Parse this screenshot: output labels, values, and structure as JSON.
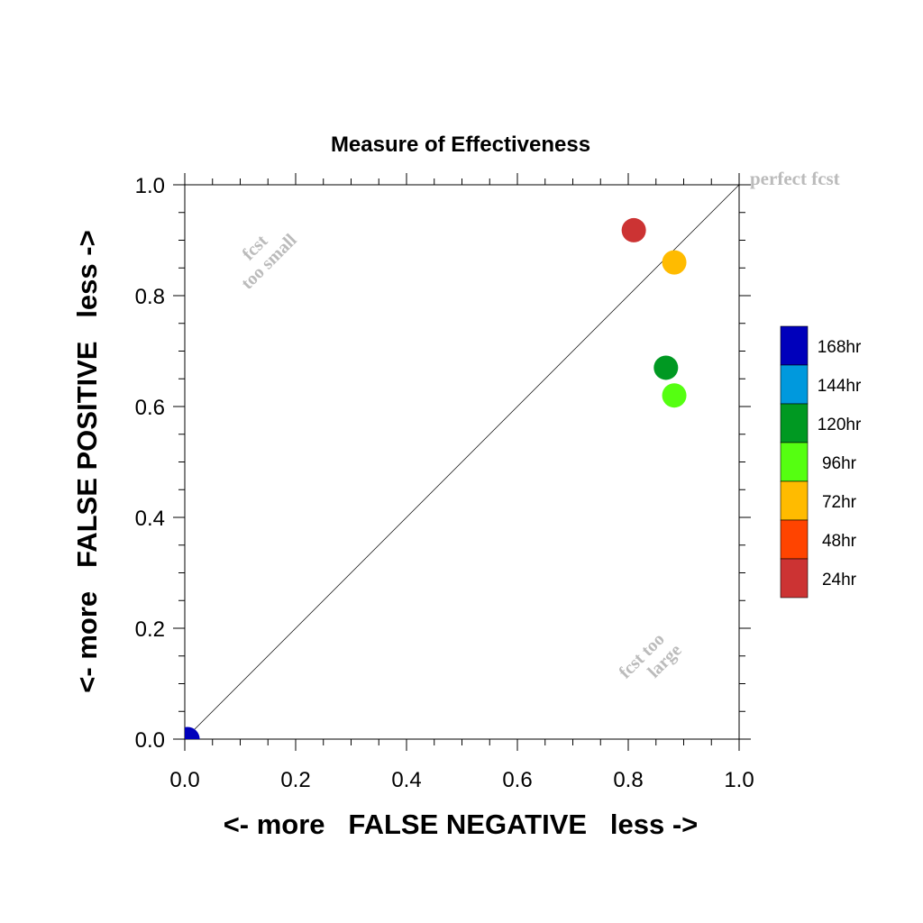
{
  "chart_data": {
    "type": "scatter",
    "title": "Measure of Effectiveness",
    "xlabel": "<- more   FALSE NEGATIVE   less ->",
    "ylabel": "<- more   FALSE POSITIVE   less ->",
    "xlim": [
      0.0,
      1.0
    ],
    "ylim": [
      0.0,
      1.0
    ],
    "x_ticks": [
      "0.0",
      "0.2",
      "0.4",
      "0.6",
      "0.8",
      "1.0"
    ],
    "y_ticks": [
      "0.0",
      "0.2",
      "0.4",
      "0.6",
      "0.8",
      "1.0"
    ],
    "grid": false,
    "diagonal_label": "perfect fcst",
    "annotations": {
      "upper_left": [
        "fcst",
        "too small"
      ],
      "lower_right": [
        "fcst too",
        "large"
      ]
    },
    "legend_placement": "right",
    "points": [
      {
        "label": "168hr",
        "x": 0.005,
        "y": 0.0,
        "color": "#0000bb"
      },
      {
        "label": "120hr",
        "x": 0.868,
        "y": 0.67,
        "color": "#009922"
      },
      {
        "label": "96hr",
        "x": 0.883,
        "y": 0.62,
        "color": "#55ff11"
      },
      {
        "label": "72hr",
        "x": 0.883,
        "y": 0.86,
        "color": "#ffbb00"
      },
      {
        "label": "24hr",
        "x": 0.81,
        "y": 0.918,
        "color": "#cc3333"
      }
    ],
    "legend": [
      {
        "label": "168hr",
        "color": "#0000bb"
      },
      {
        "label": "144hr",
        "color": "#0099dd"
      },
      {
        "label": "120hr",
        "color": "#009922"
      },
      {
        "label": "96hr",
        "color": "#55ff11"
      },
      {
        "label": "72hr",
        "color": "#ffbb00"
      },
      {
        "label": "48hr",
        "color": "#ff4400"
      },
      {
        "label": "24hr",
        "color": "#cc3333"
      }
    ]
  }
}
